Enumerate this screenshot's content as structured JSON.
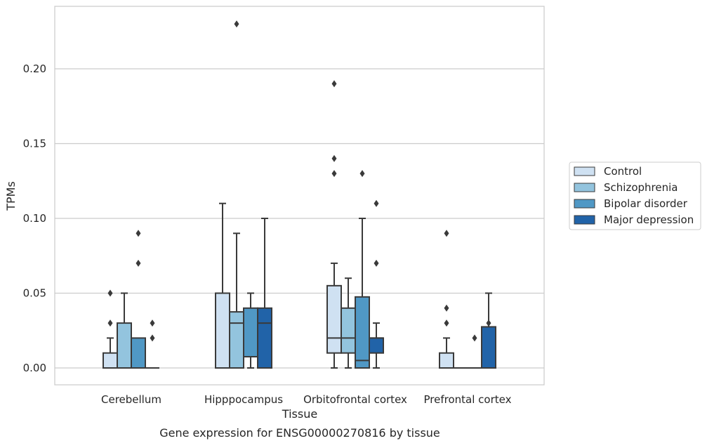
{
  "chart_data": {
    "type": "box",
    "caption": "Gene expression for ENSG00000270816 by tissue",
    "xlabel": "Tissue",
    "ylabel": "TPMs",
    "ylim": [
      -0.011,
      0.242
    ],
    "yticks": [
      0.0,
      0.05,
      0.1,
      0.15,
      0.2
    ],
    "ytick_labels": [
      "0.00",
      "0.05",
      "0.10",
      "0.15",
      "0.20"
    ],
    "grid": "horizontal",
    "legend_position": "right",
    "categories": [
      "Cerebellum",
      "Hipppocampus",
      "Orbitofrontal cortex",
      "Prefrontal cortex"
    ],
    "series": [
      {
        "name": "Control",
        "color": "#cfe1f2",
        "boxes": [
          {
            "q1": 0.0,
            "median": 0.0,
            "q3": 0.01,
            "whisker_low": 0.0,
            "whisker_high": 0.02,
            "outliers": [
              0.03,
              0.05
            ]
          },
          {
            "q1": 0.0,
            "median": 0.0,
            "q3": 0.05,
            "whisker_low": 0.0,
            "whisker_high": 0.11,
            "outliers": []
          },
          {
            "q1": 0.01,
            "median": 0.02,
            "q3": 0.055,
            "whisker_low": 0.0,
            "whisker_high": 0.07,
            "outliers": [
              0.13,
              0.14,
              0.19
            ]
          },
          {
            "q1": 0.0,
            "median": 0.0,
            "q3": 0.01,
            "whisker_low": 0.0,
            "whisker_high": 0.02,
            "outliers": [
              0.03,
              0.04,
              0.09
            ]
          }
        ]
      },
      {
        "name": "Schizophrenia",
        "color": "#93c4de",
        "boxes": [
          {
            "q1": 0.0,
            "median": 0.0,
            "q3": 0.03,
            "whisker_low": 0.0,
            "whisker_high": 0.05,
            "outliers": []
          },
          {
            "q1": 0.0,
            "median": 0.03,
            "q3": 0.0375,
            "whisker_low": 0.0,
            "whisker_high": 0.09,
            "outliers": [
              0.23
            ]
          },
          {
            "q1": 0.01,
            "median": 0.02,
            "q3": 0.04,
            "whisker_low": 0.0,
            "whisker_high": 0.06,
            "outliers": []
          },
          {
            "q1": 0.0,
            "median": 0.0,
            "q3": 0.0,
            "whisker_low": 0.0,
            "whisker_high": 0.0,
            "outliers": []
          }
        ]
      },
      {
        "name": "Bipolar disorder",
        "color": "#5098c5",
        "boxes": [
          {
            "q1": 0.0,
            "median": 0.0,
            "q3": 0.02,
            "whisker_low": 0.0,
            "whisker_high": 0.02,
            "outliers": [
              0.07,
              0.09
            ]
          },
          {
            "q1": 0.0075,
            "median": 0.0075,
            "q3": 0.04,
            "whisker_low": 0.0,
            "whisker_high": 0.05,
            "outliers": []
          },
          {
            "q1": 0.0,
            "median": 0.005,
            "q3": 0.0475,
            "whisker_low": 0.0,
            "whisker_high": 0.1,
            "outliers": [
              0.13
            ]
          },
          {
            "q1": 0.0,
            "median": 0.0,
            "q3": 0.0,
            "whisker_low": 0.0,
            "whisker_high": 0.0,
            "outliers": [
              0.02
            ]
          }
        ]
      },
      {
        "name": "Major depression",
        "color": "#2163a8",
        "boxes": [
          {
            "q1": 0.0,
            "median": 0.0,
            "q3": 0.0,
            "whisker_low": 0.0,
            "whisker_high": 0.0,
            "outliers": [
              0.02,
              0.03
            ]
          },
          {
            "q1": 0.0,
            "median": 0.03,
            "q3": 0.04,
            "whisker_low": 0.0,
            "whisker_high": 0.1,
            "outliers": []
          },
          {
            "q1": 0.01,
            "median": 0.02,
            "q3": 0.02,
            "whisker_low": 0.0,
            "whisker_high": 0.03,
            "outliers": [
              0.07,
              0.11
            ]
          },
          {
            "q1": 0.0,
            "median": 0.0,
            "q3": 0.0275,
            "whisker_low": 0.0,
            "whisker_high": 0.05,
            "outliers": [
              0.03
            ]
          }
        ]
      }
    ]
  }
}
